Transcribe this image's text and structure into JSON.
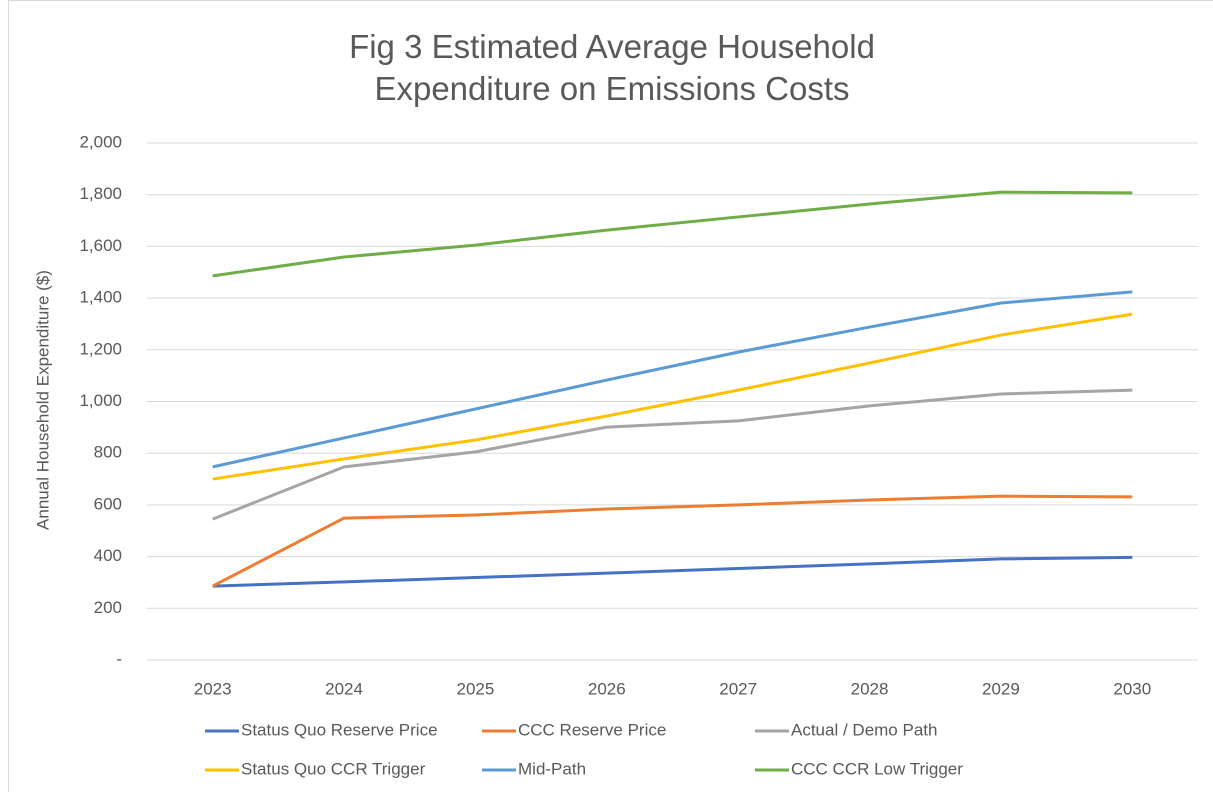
{
  "chart_data": {
    "type": "line",
    "title": "Fig 3 Estimated Average Household Expenditure on Emissions Costs",
    "y_label": "Annual Household Expenditure ($)",
    "categories": [
      "2023",
      "2024",
      "2025",
      "2026",
      "2027",
      "2028",
      "2029",
      "2030"
    ],
    "series": [
      {
        "name": "Status Quo Reserve Price",
        "color": "#4472c4",
        "values": [
          286,
          302,
          319,
          336,
          354,
          372,
          391,
          397
        ]
      },
      {
        "name": "CCC Reserve Price",
        "color": "#ed7d31",
        "values": [
          286,
          549,
          561,
          584,
          600,
          619,
          634,
          631
        ]
      },
      {
        "name": "Actual / Demo Path",
        "color": "#a5a5a5",
        "values": [
          545,
          747,
          805,
          901,
          925,
          983,
          1029,
          1044
        ]
      },
      {
        "name": "Status Quo CCR Trigger",
        "color": "#ffc000",
        "values": [
          700,
          778,
          851,
          944,
          1044,
          1149,
          1257,
          1338
        ]
      },
      {
        "name": "Mid-Path",
        "color": "#5b9bd5",
        "values": [
          747,
          859,
          971,
          1083,
          1191,
          1288,
          1381,
          1424
        ]
      },
      {
        "name": "CCC CCR Low Trigger",
        "color": "#70ad47",
        "values": [
          1486,
          1559,
          1605,
          1663,
          1714,
          1764,
          1810,
          1807
        ]
      }
    ],
    "ylim": [
      0,
      2000
    ],
    "yticks": [
      {
        "value": 0,
        "label": "-"
      },
      200,
      400,
      600,
      800,
      {
        "value": 1000,
        "label": "1,000"
      },
      {
        "value": 1200,
        "label": "1,200"
      },
      {
        "value": 1400,
        "label": "1,400"
      },
      {
        "value": 1600,
        "label": "1,600"
      },
      {
        "value": 1800,
        "label": "1,800"
      },
      {
        "value": 2000,
        "label": "2,000"
      }
    ],
    "grid": true
  }
}
